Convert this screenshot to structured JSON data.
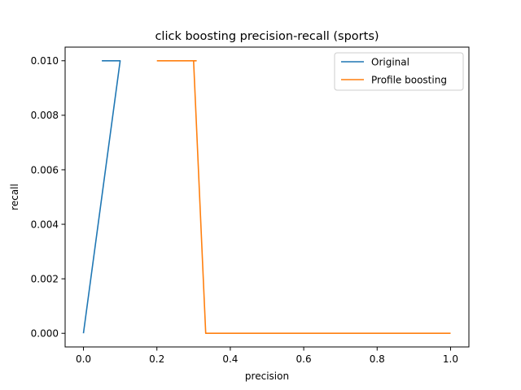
{
  "chart_data": {
    "type": "line",
    "title": "click boosting precision-recall (sports)",
    "xlabel": "precision",
    "ylabel": "recall",
    "xlim": [
      -0.05,
      1.05
    ],
    "ylim": [
      -0.0005,
      0.0105
    ],
    "xticks": [
      0.0,
      0.2,
      0.4,
      0.6,
      0.8,
      1.0
    ],
    "xtick_labels": [
      "0.0",
      "0.2",
      "0.4",
      "0.6",
      "0.8",
      "1.0"
    ],
    "yticks": [
      0.0,
      0.002,
      0.004,
      0.006,
      0.008,
      0.01
    ],
    "ytick_labels": [
      "0.000",
      "0.002",
      "0.004",
      "0.006",
      "0.008",
      "0.010"
    ],
    "grid": false,
    "legend_position": "upper right",
    "series": [
      {
        "name": "Original",
        "color": "#1f77b4",
        "x": [
          0.05,
          0.1,
          0.0
        ],
        "y": [
          0.01,
          0.01,
          0.0
        ]
      },
      {
        "name": "Profile boosting",
        "color": "#ff7f0e",
        "x": [
          0.2,
          0.25,
          0.3,
          0.307,
          0.3,
          0.333,
          0.5,
          1.0
        ],
        "y": [
          0.01,
          0.01,
          0.01,
          0.01,
          0.01,
          0.0,
          0.0,
          0.0
        ]
      }
    ]
  }
}
